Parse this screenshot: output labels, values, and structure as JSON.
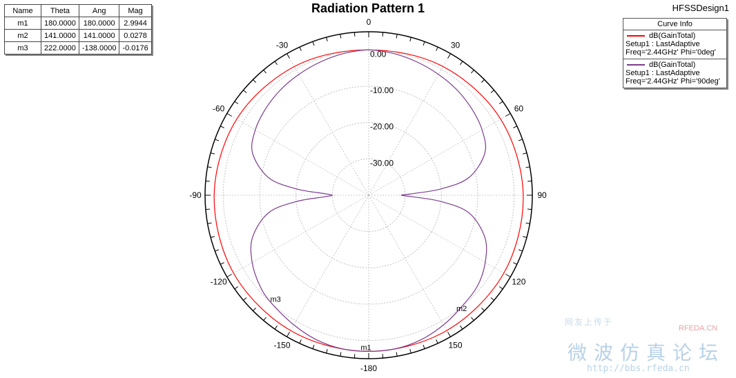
{
  "chart_data": {
    "type": "polar-line",
    "title": "Radiation Pattern 1",
    "design": "HFSSDesign1",
    "r_range": [
      -40,
      5
    ],
    "r_ticks": [
      "0.00",
      "-10.00",
      "-20.00",
      "-30.00"
    ],
    "r_tick_values": [
      0,
      -10,
      -20,
      -30
    ],
    "angle_labels": [
      {
        "deg": 0,
        "label": "0"
      },
      {
        "deg": 30,
        "label": "30"
      },
      {
        "deg": 60,
        "label": "60"
      },
      {
        "deg": 90,
        "label": "90"
      },
      {
        "deg": 120,
        "label": "120"
      },
      {
        "deg": 150,
        "label": "150"
      },
      {
        "deg": 180,
        "label": "-180"
      },
      {
        "deg": -150,
        "label": "-150"
      },
      {
        "deg": -120,
        "label": "-120"
      },
      {
        "deg": -90,
        "label": "-90"
      },
      {
        "deg": -60,
        "label": "-60"
      },
      {
        "deg": -30,
        "label": "-30"
      }
    ],
    "series": [
      {
        "name": "dB(GainTotal)",
        "setup": "Setup1 : LastAdaptive",
        "freq": "Freq='2.44GHz' Phi='0deg'",
        "color": "#ff0000",
        "theta": [
          0,
          30,
          60,
          90,
          120,
          150,
          180,
          210,
          240,
          270,
          300,
          330
        ],
        "gain": [
          0,
          0.9,
          1.9,
          2.5,
          2.9,
          3.0,
          2.99,
          3.0,
          2.9,
          2.5,
          1.9,
          0.9
        ]
      },
      {
        "name": "dB(GainTotal)",
        "setup": "Setup1 : LastAdaptive",
        "freq": "Freq='2.44GHz' Phi='90deg'",
        "color": "#7a3a8c",
        "theta": [
          0,
          10,
          20,
          30,
          40,
          50,
          60,
          70,
          80,
          85,
          88,
          90,
          92,
          95,
          100,
          110,
          120,
          130,
          141,
          150,
          160,
          170,
          180,
          190,
          200,
          210,
          222,
          230,
          240,
          250,
          260,
          265,
          268,
          270,
          272,
          275,
          280,
          290,
          300,
          310,
          320,
          330,
          340,
          350
        ],
        "gain": [
          0,
          -0.4,
          -1.0,
          -1.6,
          -2.2,
          -3.0,
          -4.0,
          -6.0,
          -12.0,
          -20.0,
          -28.0,
          -31.0,
          -28.0,
          -20.0,
          -12.0,
          -6.0,
          -3.0,
          -1.0,
          0.03,
          1.2,
          2.3,
          2.9,
          2.99,
          2.9,
          2.3,
          1.2,
          -0.02,
          -1.0,
          -3.0,
          -6.0,
          -12.0,
          -20.0,
          -28.0,
          -30.0,
          -28.0,
          -20.0,
          -12.0,
          -6.0,
          -4.0,
          -3.0,
          -2.2,
          -1.6,
          -1.0,
          -0.4
        ]
      }
    ],
    "markers": [
      {
        "name": "m1",
        "theta": 180,
        "gain": 2.9944
      },
      {
        "name": "m2",
        "theta": 141,
        "gain": 0.0278
      },
      {
        "name": "m3",
        "theta": 222,
        "gain": -0.0176
      }
    ]
  },
  "marker_table": {
    "headers": [
      "Name",
      "Theta",
      "Ang",
      "Mag"
    ],
    "rows": [
      [
        "m1",
        "180.0000",
        "180.0000",
        "2.9944"
      ],
      [
        "m2",
        "141.0000",
        "141.0000",
        "0.0278"
      ],
      [
        "m3",
        "222.0000",
        "-138.0000",
        "-0.0176"
      ]
    ]
  },
  "legend": {
    "title": "Curve Info",
    "entries": [
      {
        "name": "dB(GainTotal)",
        "setup": "Setup1 : LastAdaptive",
        "freq": "Freq='2.44GHz' Phi='0deg'",
        "color": "#ff0000"
      },
      {
        "name": "dB(GainTotal)",
        "setup": "Setup1 : LastAdaptive",
        "freq": "Freq='2.44GHz' Phi='90deg'",
        "color": "#7a3a8c"
      }
    ]
  },
  "watermark": {
    "cn_small": "网友上传于",
    "rf": "RFEDA.CN",
    "cn_big": "微波仿真论坛",
    "url": "http://bbs.rfeda.cn"
  }
}
